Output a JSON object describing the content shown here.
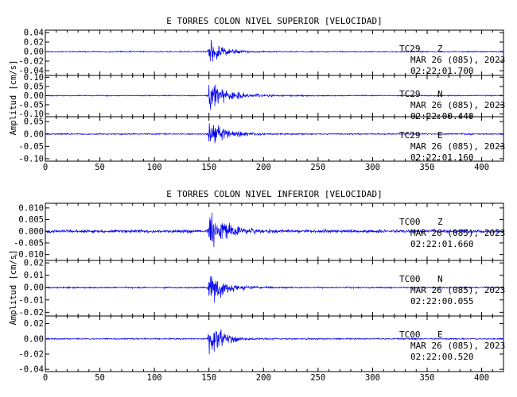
{
  "chart_data": [
    {
      "type": "line",
      "title": "E TORRES COLON NIVEL SUPERIOR [VELOCIDAD]",
      "ylabel": "Amplitud [cm/s]",
      "xlim": [
        0,
        420
      ],
      "xticks": [
        "0",
        "50",
        "100",
        "150",
        "200",
        "250",
        "300",
        "350",
        "400"
      ],
      "traces": [
        {
          "station": "TC29",
          "component": "Z",
          "date": "MAR 26 (085), 2023",
          "time": "02:22:01.700",
          "ylim": [
            -0.05,
            0.045
          ],
          "yticks": [
            "0.04",
            "0.02",
            "0.00",
            "-0.02",
            "-0.04"
          ],
          "yvals": [
            0.04,
            0.02,
            0.0,
            -0.02,
            -0.04
          ],
          "onset": 150,
          "peak": 0.04,
          "noise": 0.0015,
          "decay": 12
        },
        {
          "station": "TC29",
          "component": "N",
          "date": "MAR 26 (085), 2023",
          "time": "02:22:00.440",
          "ylim": [
            -0.115,
            0.11
          ],
          "yticks": [
            "0.10",
            "0.05",
            "0.00",
            "-0.05",
            "-0.10"
          ],
          "yvals": [
            0.1,
            0.05,
            0.0,
            -0.05,
            -0.1
          ],
          "onset": 150,
          "peak": 0.1,
          "noise": 0.004,
          "decay": 18
        },
        {
          "station": "TC29",
          "component": "E",
          "date": "MAR 26 (085), 2023",
          "time": "02:22:01.160",
          "ylim": [
            -0.11,
            0.07
          ],
          "yticks": [
            "0.05",
            "0.00",
            "-0.05",
            "-0.10"
          ],
          "yvals": [
            0.05,
            0.0,
            -0.05,
            -0.1
          ],
          "onset": 150,
          "peak": 0.09,
          "noise": 0.004,
          "decay": 14
        }
      ]
    },
    {
      "type": "line",
      "title": "E TORRES COLON NIVEL INFERIOR [VELOCIDAD]",
      "ylabel": "Amplitud [cm/s]",
      "xlim": [
        0,
        420
      ],
      "xticks": [
        "0",
        "50",
        "100",
        "150",
        "200",
        "250",
        "300",
        "350",
        "400"
      ],
      "traces": [
        {
          "station": "TC00",
          "component": "Z",
          "date": "MAR 26 (085), 2023",
          "time": "02:22:01.660",
          "ylim": [
            -0.0125,
            0.012
          ],
          "yticks": [
            "0.010",
            "0.005",
            "0.000",
            "-0.005",
            "-0.010"
          ],
          "yvals": [
            0.01,
            0.005,
            0.0,
            -0.005,
            -0.01
          ],
          "onset": 150,
          "peak": 0.011,
          "noise": 0.0009,
          "decay": 16
        },
        {
          "station": "TC00",
          "component": "N",
          "date": "MAR 26 (085), 2023",
          "time": "02:22:00.055",
          "ylim": [
            -0.023,
            0.022
          ],
          "yticks": [
            "0.02",
            "0.01",
            "0.00",
            "-0.01",
            "-0.02"
          ],
          "yvals": [
            0.02,
            0.01,
            0.0,
            -0.01,
            -0.02
          ],
          "onset": 150,
          "peak": 0.021,
          "noise": 0.0008,
          "decay": 13
        },
        {
          "station": "TC00",
          "component": "E",
          "date": "MAR 26 (085), 2023",
          "time": "02:22:00.520",
          "ylim": [
            -0.043,
            0.03
          ],
          "yticks": [
            "0.02",
            "0.00",
            "-0.02",
            "-0.04"
          ],
          "yvals": [
            0.02,
            0.0,
            -0.02,
            -0.04
          ],
          "onset": 150,
          "peak": 0.036,
          "noise": 0.0012,
          "decay": 11
        }
      ]
    }
  ]
}
